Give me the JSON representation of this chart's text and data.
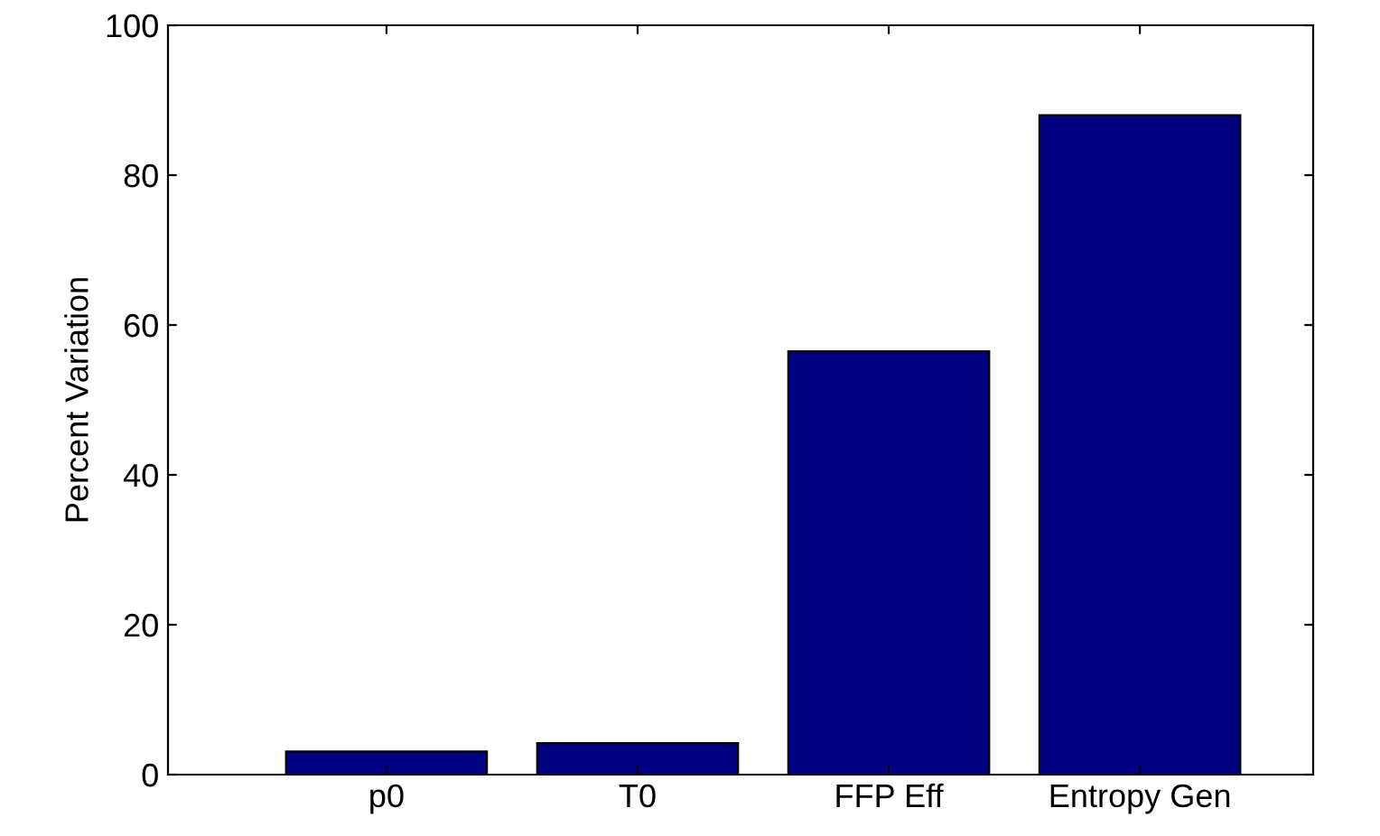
{
  "chart_data": {
    "type": "bar",
    "ylabel": "Percent Variation",
    "categories": [
      "p0",
      "T0",
      "FFP Eff",
      "Entropy Gen"
    ],
    "values": [
      3.1,
      4.2,
      56.5,
      88
    ],
    "color": "#000080",
    "ylim": [
      0,
      100
    ],
    "yticks": [
      0,
      20,
      40,
      60,
      80,
      100
    ],
    "grid": false
  }
}
